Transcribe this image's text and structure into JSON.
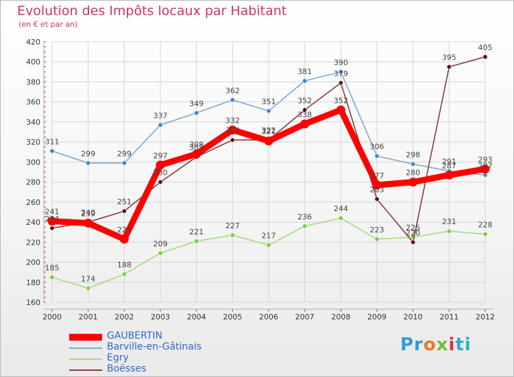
{
  "chart_data": {
    "type": "line",
    "title": "Evolution des Impôts locaux par Habitant",
    "subtitle": "(en € et par an)",
    "xlabel": "",
    "ylabel": "",
    "ylim": [
      160,
      420
    ],
    "yticks": [
      160,
      180,
      200,
      220,
      240,
      260,
      280,
      300,
      320,
      340,
      360,
      380,
      400,
      420
    ],
    "x": [
      "2000",
      "2001",
      "2002",
      "2003",
      "2004",
      "2005",
      "2006",
      "2007",
      "2008",
      "2009",
      "2010",
      "2011",
      "2012"
    ],
    "grid": true,
    "legend_position": "bottom-left",
    "series": [
      {
        "name": "Barville-en-Gâtinais",
        "color": "#7fa8d0",
        "marker": "#3f86c6",
        "values": [
          311,
          299,
          299,
          337,
          349,
          362,
          351,
          381,
          390,
          306,
          298,
          291,
          287
        ],
        "labels": [
          "311",
          "299",
          "299",
          "337",
          "349",
          "362",
          "351",
          "381",
          "390",
          "306",
          "298",
          "291",
          "287"
        ]
      },
      {
        "name": "Egry",
        "color": "#a6d97f",
        "marker": "#7ccc3c",
        "values": [
          185,
          174,
          188,
          209,
          221,
          227,
          217,
          236,
          244,
          223,
          225,
          231,
          228
        ],
        "labels": [
          "185",
          "174",
          "188",
          "209",
          "221",
          "227",
          "217",
          "236",
          "244",
          "223",
          "225",
          "231",
          "228"
        ]
      },
      {
        "name": "Boësses",
        "color": "#8b3a3a",
        "marker": "#5a1414",
        "values": [
          234,
          240,
          251,
          280,
          305,
          322,
          322,
          352,
          379,
          263,
          220,
          395,
          405
        ],
        "labels": [
          "234",
          "240",
          "251",
          "280",
          "305",
          "322",
          "322",
          "352",
          "379",
          "263",
          "220",
          "395",
          "405"
        ]
      },
      {
        "name": "GAUBERTIN",
        "color": "#ff0000",
        "marker": "#ff0000",
        "values": [
          241,
          239,
          223,
          297,
          308,
          332,
          321,
          338,
          352,
          277,
          280,
          287,
          293
        ],
        "labels": [
          "241",
          "239",
          "223",
          "297",
          "308",
          "332",
          "321",
          "338",
          "352",
          "277",
          "280",
          "287",
          "293"
        ]
      }
    ],
    "legend_order": [
      "GAUBERTIN",
      "Barville-en-Gâtinais",
      "Egry",
      "Boësses"
    ]
  },
  "legend": {
    "items": [
      {
        "label": "GAUBERTIN",
        "color": "#ff0000",
        "thick": true
      },
      {
        "label": "Barville-en-Gâtinais",
        "color": "#7fa8d0",
        "thick": false
      },
      {
        "label": "Egry",
        "color": "#a6d97f",
        "thick": false
      },
      {
        "label": "Boësses",
        "color": "#8b3a3a",
        "thick": false
      }
    ]
  },
  "logo": {
    "text": "Proxiti",
    "c1": "Pr",
    "c2": "o",
    "c3": "x",
    "c4": "i",
    "c5": "ti"
  }
}
